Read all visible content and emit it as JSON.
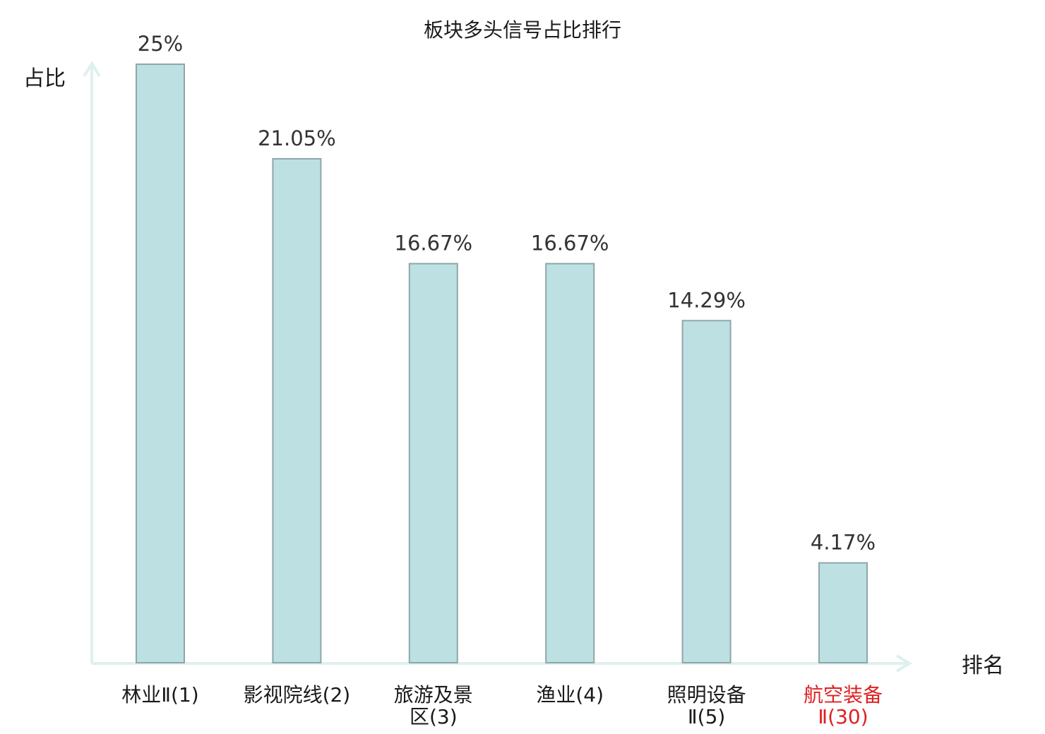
{
  "chart_data": {
    "type": "bar",
    "title": "板块多头信号占比排行",
    "xlabel": "排名",
    "ylabel": "占比",
    "categories": [
      [
        "林业Ⅱ(1)"
      ],
      [
        "影视院线(2)"
      ],
      [
        "旅游及景",
        "区(3)"
      ],
      [
        "渔业(4)"
      ],
      [
        "照明设备",
        "Ⅱ(5)"
      ],
      [
        "航空装备",
        "Ⅱ(30)"
      ]
    ],
    "values": [
      25,
      21.05,
      16.67,
      16.67,
      14.29,
      4.17
    ],
    "value_labels": [
      "25%",
      "21.05%",
      "16.67%",
      "16.67%",
      "14.29%",
      "4.17%"
    ],
    "highlight_index": 5,
    "ylim": [
      0,
      25
    ],
    "grid": false,
    "colors": {
      "bar_fill": "#bde0e3",
      "bar_stroke": "#8fa6a8",
      "axis": "#dff0ee",
      "text": "#1a1a1a",
      "value_text": "#333333",
      "highlight": "#e02020"
    }
  }
}
